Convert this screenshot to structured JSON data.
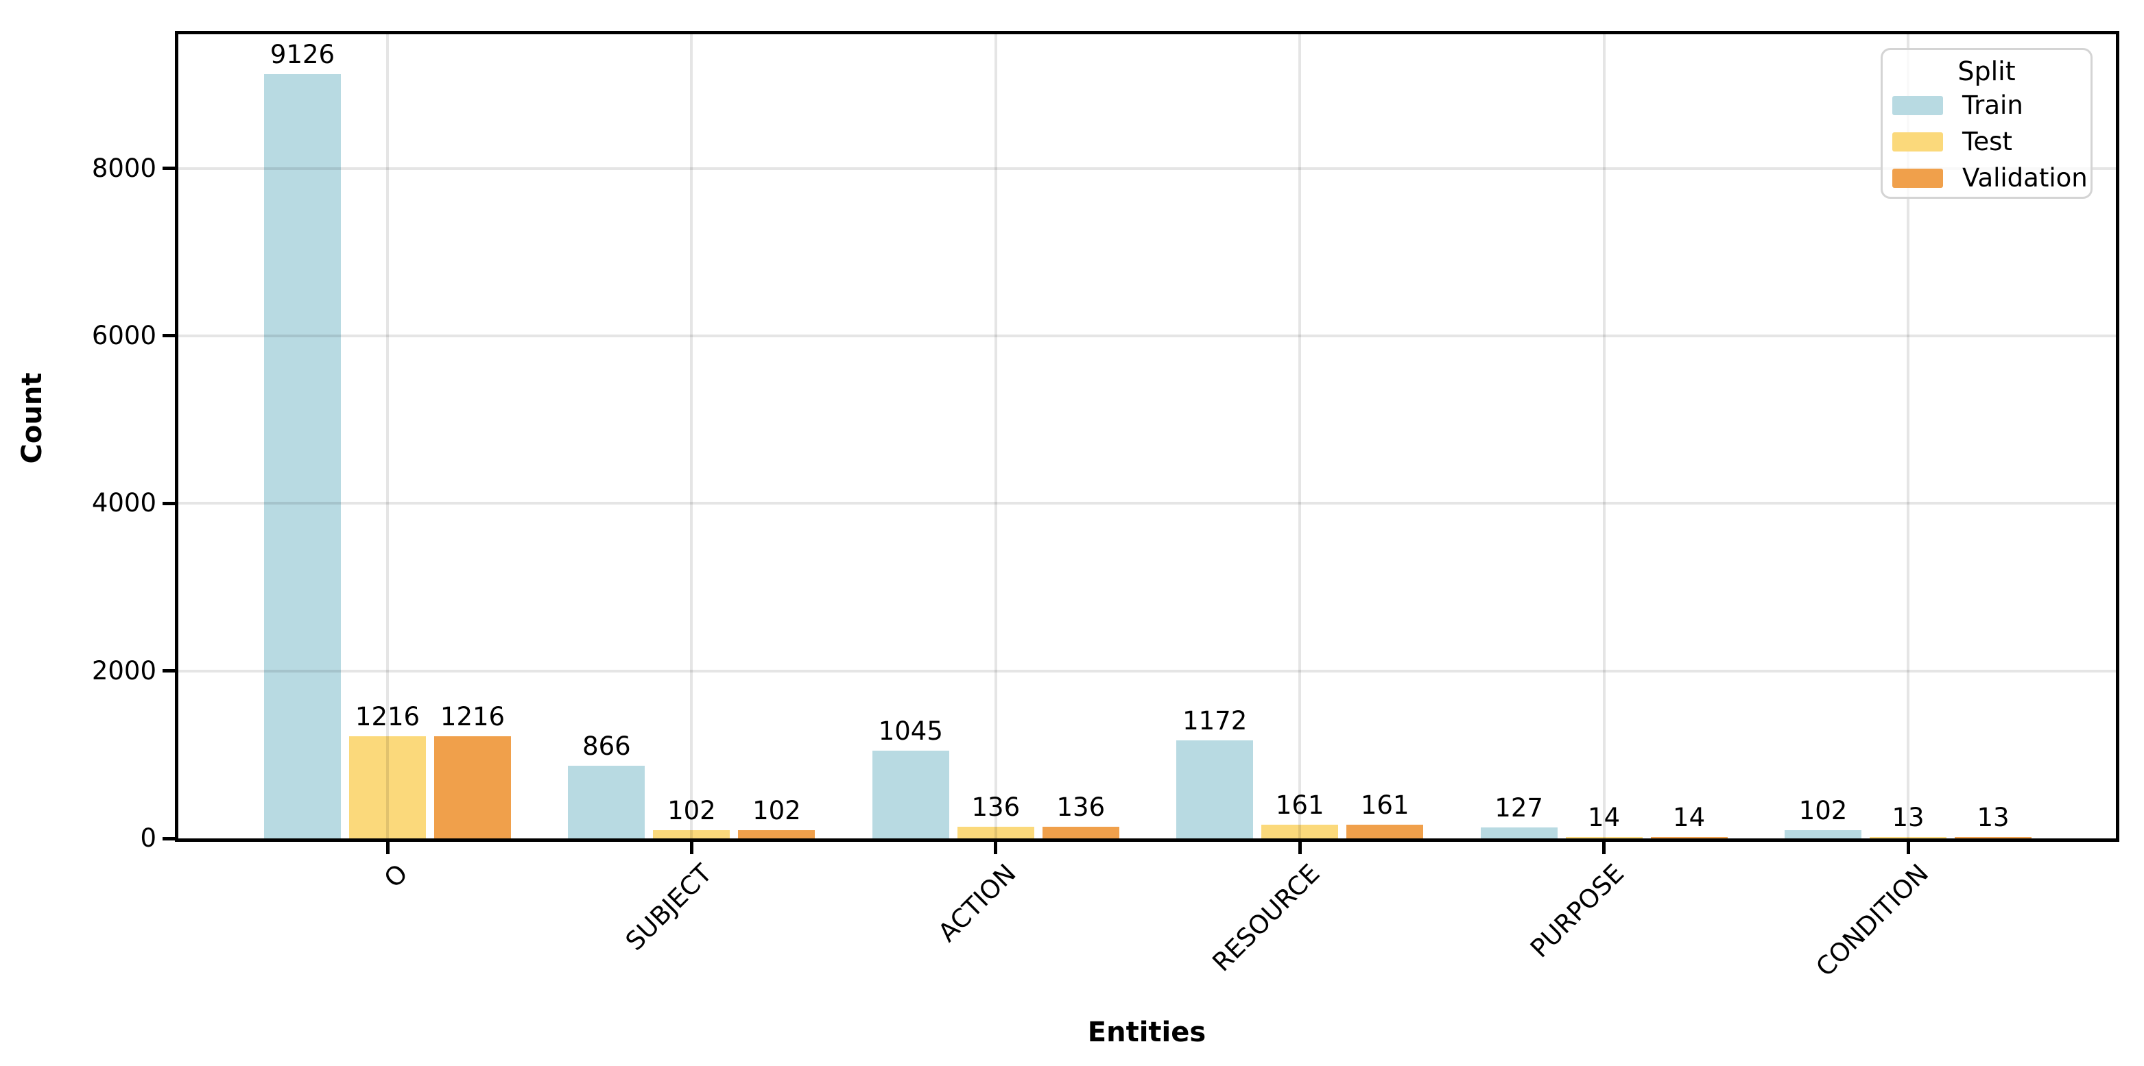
{
  "chart_data": {
    "type": "bar",
    "title": "",
    "xlabel": "Entities",
    "ylabel": "Count",
    "categories": [
      "O",
      "SUBJECT",
      "ACTION",
      "RESOURCE",
      "PURPOSE",
      "CONDITION"
    ],
    "series": [
      {
        "name": "Train",
        "color": "#b8dae2",
        "values": [
          9126,
          866,
          1045,
          1172,
          127,
          102
        ]
      },
      {
        "name": "Test",
        "color": "#fbd97b",
        "values": [
          1216,
          102,
          136,
          161,
          14,
          13
        ]
      },
      {
        "name": "Validation",
        "color": "#f0a04b",
        "values": [
          1216,
          102,
          136,
          161,
          14,
          13
        ]
      }
    ],
    "bar_value_labels": [
      "9126",
      "1216",
      "1216",
      "866",
      "102",
      "102",
      "1045",
      "136",
      "136",
      "1172",
      "161",
      "161",
      "127",
      "14",
      "14",
      "102",
      "13",
      "13"
    ],
    "yticks": [
      "0",
      "2000",
      "4000",
      "6000",
      "8000"
    ],
    "ylim": [
      0,
      9600
    ],
    "grid": "both",
    "legend": {
      "title": "Split",
      "entries": [
        "Train",
        "Test",
        "Validation"
      ],
      "position": "upper right"
    }
  },
  "colors": {
    "background": "#ffffff",
    "spine": "#000000",
    "gridline": "#e6e6e6",
    "legend_border": "#d4d4d4",
    "text": "#000000"
  }
}
